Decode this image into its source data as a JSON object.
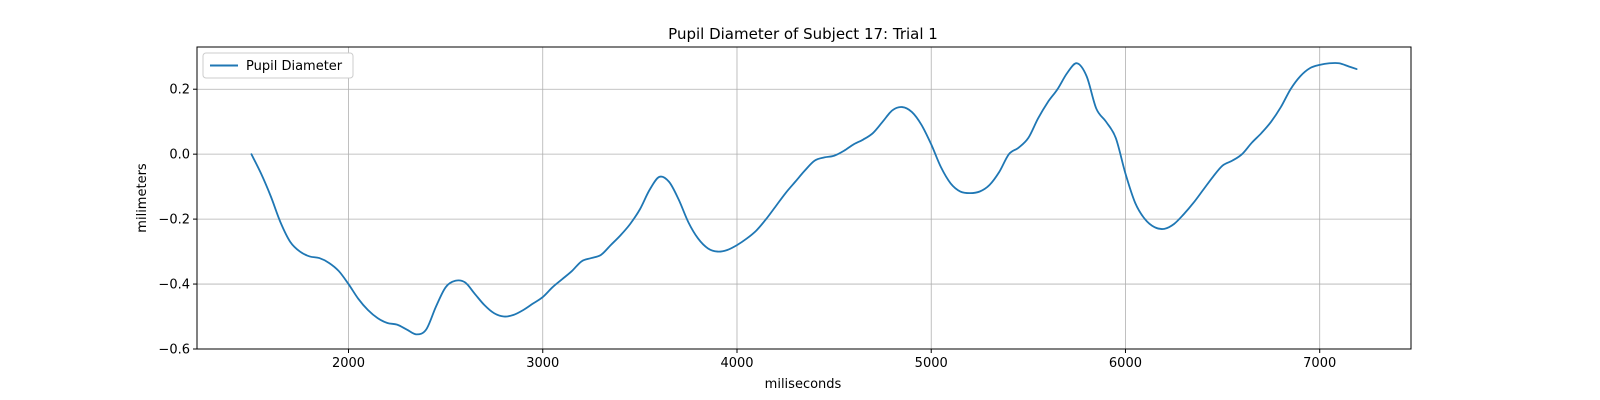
{
  "chart_data": {
    "type": "line",
    "title": "Pupil Diameter of Subject 17: Trial 1",
    "xlabel": "miliseconds",
    "ylabel": "milimeters",
    "xlim": [
      1220,
      7470
    ],
    "ylim": [
      -0.6,
      0.33
    ],
    "xticks": [
      2000,
      3000,
      4000,
      5000,
      6000,
      7000
    ],
    "yticks": [
      -0.6,
      -0.4,
      -0.2,
      0.0,
      0.2
    ],
    "ytick_labels": [
      "−0.6",
      "−0.4",
      "−0.2",
      "0.0",
      "0.2"
    ],
    "grid": true,
    "legend_position": "top-left",
    "series": [
      {
        "name": "Pupil Diameter",
        "color": "#1f77b4",
        "x": [
          1500,
          1550,
          1600,
          1650,
          1700,
          1750,
          1800,
          1850,
          1900,
          1950,
          2000,
          2050,
          2100,
          2150,
          2200,
          2250,
          2300,
          2350,
          2400,
          2450,
          2500,
          2550,
          2600,
          2650,
          2700,
          2750,
          2800,
          2850,
          2900,
          2950,
          3000,
          3050,
          3100,
          3150,
          3200,
          3250,
          3300,
          3350,
          3400,
          3450,
          3500,
          3550,
          3600,
          3650,
          3700,
          3750,
          3800,
          3850,
          3900,
          3950,
          4000,
          4050,
          4100,
          4150,
          4200,
          4250,
          4300,
          4350,
          4400,
          4450,
          4500,
          4550,
          4600,
          4650,
          4700,
          4750,
          4800,
          4850,
          4900,
          4950,
          5000,
          5050,
          5100,
          5150,
          5200,
          5250,
          5300,
          5350,
          5400,
          5450,
          5500,
          5550,
          5600,
          5650,
          5700,
          5750,
          5800,
          5850,
          5900,
          5950,
          6000,
          6050,
          6100,
          6150,
          6200,
          6250,
          6300,
          6350,
          6400,
          6450,
          6500,
          6550,
          6600,
          6650,
          6700,
          6750,
          6800,
          6850,
          6900,
          6950,
          7000,
          7050,
          7100,
          7150,
          7190
        ],
        "values": [
          0.0,
          -0.06,
          -0.13,
          -0.21,
          -0.27,
          -0.3,
          -0.315,
          -0.32,
          -0.335,
          -0.36,
          -0.4,
          -0.445,
          -0.48,
          -0.505,
          -0.52,
          -0.525,
          -0.54,
          -0.555,
          -0.54,
          -0.47,
          -0.41,
          -0.39,
          -0.395,
          -0.43,
          -0.465,
          -0.49,
          -0.5,
          -0.495,
          -0.48,
          -0.46,
          -0.44,
          -0.41,
          -0.385,
          -0.36,
          -0.33,
          -0.32,
          -0.31,
          -0.28,
          -0.25,
          -0.215,
          -0.17,
          -0.11,
          -0.07,
          -0.085,
          -0.14,
          -0.21,
          -0.26,
          -0.29,
          -0.3,
          -0.295,
          -0.28,
          -0.26,
          -0.235,
          -0.2,
          -0.16,
          -0.12,
          -0.085,
          -0.05,
          -0.02,
          -0.01,
          -0.005,
          0.01,
          0.03,
          0.045,
          0.065,
          0.1,
          0.135,
          0.145,
          0.13,
          0.09,
          0.03,
          -0.04,
          -0.09,
          -0.115,
          -0.12,
          -0.115,
          -0.095,
          -0.055,
          0.0,
          0.02,
          0.05,
          0.11,
          0.16,
          0.2,
          0.25,
          0.28,
          0.24,
          0.14,
          0.1,
          0.05,
          -0.06,
          -0.15,
          -0.2,
          -0.225,
          -0.23,
          -0.215,
          -0.185,
          -0.15,
          -0.11,
          -0.07,
          -0.035,
          -0.02,
          0.0,
          0.035,
          0.065,
          0.1,
          0.145,
          0.2,
          0.24,
          0.265,
          0.275,
          0.28,
          0.28,
          0.27,
          0.262
        ]
      }
    ]
  }
}
